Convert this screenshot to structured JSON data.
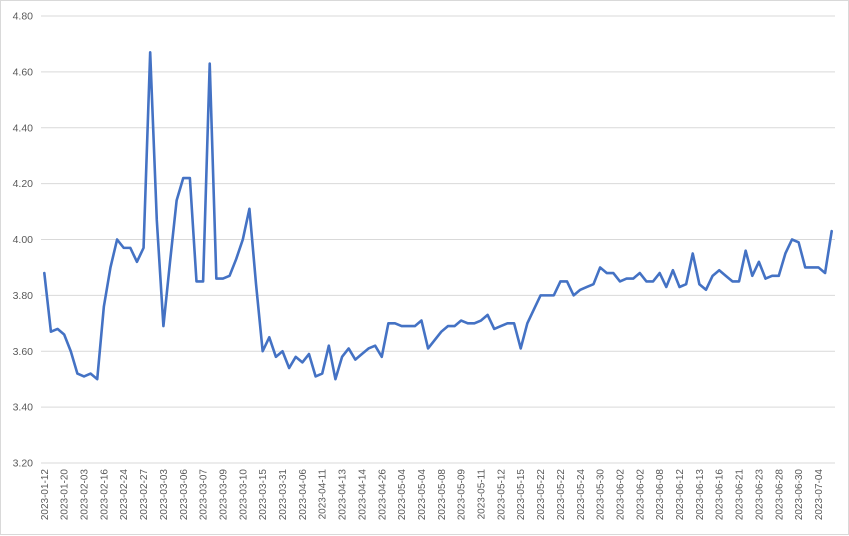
{
  "chart_data": {
    "type": "line",
    "title": "",
    "xlabel": "",
    "ylabel": "",
    "ylim": [
      3.2,
      4.8
    ],
    "yticks": [
      "3.20",
      "3.40",
      "3.60",
      "3.80",
      "4.00",
      "4.20",
      "4.40",
      "4.60",
      "4.80"
    ],
    "grid": true,
    "legend": "none",
    "x_tick_labels": [
      "2023-01-12",
      "2023-01-20",
      "2023-02-03",
      "2023-02-16",
      "2023-02-24",
      "2023-02-27",
      "2023-03-03",
      "2023-03-06",
      "2023-03-07",
      "2023-03-09",
      "2023-03-10",
      "2023-03-15",
      "2023-03-31",
      "2023-04-06",
      "2023-04-11",
      "2023-04-13",
      "2023-04-14",
      "2023-04-26",
      "2023-05-04",
      "2023-05-04",
      "2023-05-08",
      "2023-05-09",
      "2023-05-11",
      "2023-05-12",
      "2023-05-15",
      "2023-05-22",
      "2023-05-22",
      "2023-05-24",
      "2023-05-30",
      "2023-06-02",
      "2023-06-02",
      "2023-06-08",
      "2023-06-12",
      "2023-06-13",
      "2023-06-16",
      "2023-06-21",
      "2023-06-23",
      "2023-06-28",
      "2023-06-30",
      "2023-07-04"
    ],
    "tick_every": 3,
    "series": [
      {
        "color": "#4472c4",
        "values": [
          3.88,
          3.67,
          3.68,
          3.66,
          3.6,
          3.52,
          3.51,
          3.52,
          3.5,
          3.76,
          3.9,
          4.0,
          3.97,
          3.97,
          3.92,
          3.97,
          4.67,
          4.07,
          3.69,
          3.92,
          4.14,
          4.22,
          4.22,
          3.85,
          3.85,
          4.63,
          3.86,
          3.86,
          3.87,
          3.93,
          4.0,
          4.11,
          3.84,
          3.6,
          3.65,
          3.58,
          3.6,
          3.54,
          3.58,
          3.56,
          3.59,
          3.51,
          3.52,
          3.62,
          3.5,
          3.58,
          3.61,
          3.57,
          3.59,
          3.61,
          3.62,
          3.58,
          3.7,
          3.7,
          3.69,
          3.69,
          3.69,
          3.71,
          3.61,
          3.64,
          3.67,
          3.69,
          3.69,
          3.71,
          3.7,
          3.7,
          3.71,
          3.73,
          3.68,
          3.69,
          3.7,
          3.7,
          3.61,
          3.7,
          3.75,
          3.8,
          3.8,
          3.8,
          3.85,
          3.85,
          3.8,
          3.82,
          3.83,
          3.84,
          3.9,
          3.88,
          3.88,
          3.85,
          3.86,
          3.86,
          3.88,
          3.85,
          3.85,
          3.88,
          3.83,
          3.89,
          3.83,
          3.84,
          3.95,
          3.84,
          3.82,
          3.87,
          3.89,
          3.87,
          3.85,
          3.85,
          3.96,
          3.87,
          3.92,
          3.86,
          3.87,
          3.87,
          3.95,
          4.0,
          3.99,
          3.9,
          3.9,
          3.9,
          3.88,
          4.03
        ]
      }
    ]
  }
}
